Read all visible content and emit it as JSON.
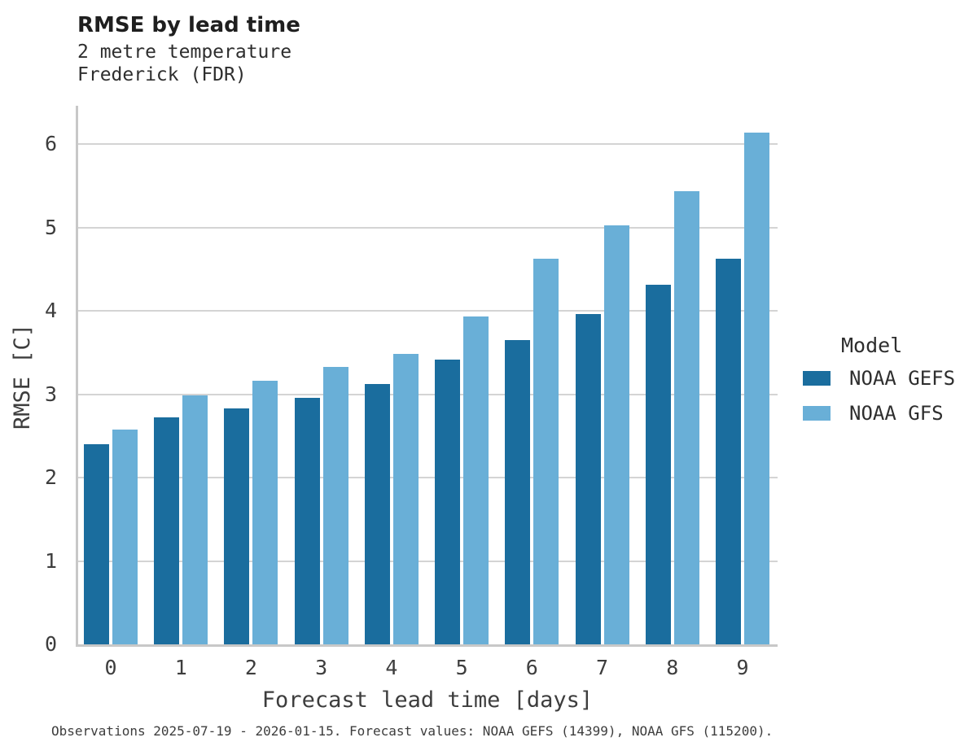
{
  "header": {
    "title": "RMSE by lead time",
    "subtitle_line1": "2 metre temperature",
    "subtitle_line2": "Frederick (FDR)"
  },
  "chart_data": {
    "type": "bar",
    "title": "RMSE by lead time",
    "subtitle": [
      "2 metre temperature",
      "Frederick (FDR)"
    ],
    "categories": [
      "0",
      "1",
      "2",
      "3",
      "4",
      "5",
      "6",
      "7",
      "8",
      "9"
    ],
    "series": [
      {
        "name": "NOAA GEFS",
        "color": "#1a6d9e",
        "values": [
          2.4,
          2.72,
          2.83,
          2.96,
          3.12,
          3.41,
          3.65,
          3.96,
          4.31,
          4.62
        ]
      },
      {
        "name": "NOAA GFS",
        "color": "#69afd7",
        "values": [
          2.58,
          2.99,
          3.16,
          3.33,
          3.48,
          3.93,
          4.62,
          5.02,
          5.43,
          6.14
        ]
      }
    ],
    "xlabel": "Forecast lead time [days]",
    "ylabel": "RMSE [C]",
    "ylim": [
      0,
      6.45
    ],
    "yticks": [
      0,
      1,
      2,
      3,
      4,
      5,
      6
    ],
    "grid": true,
    "legend_title": "Model",
    "legend_position": "right"
  },
  "legend": {
    "title": "Model",
    "items": [
      {
        "label": "NOAA GEFS",
        "color": "#1a6d9e"
      },
      {
        "label": "NOAA GFS",
        "color": "#69afd7"
      }
    ]
  },
  "footer": {
    "caption": "Observations 2025-07-19 - 2026-01-15. Forecast values: NOAA GEFS (14399), NOAA GFS (115200)."
  }
}
